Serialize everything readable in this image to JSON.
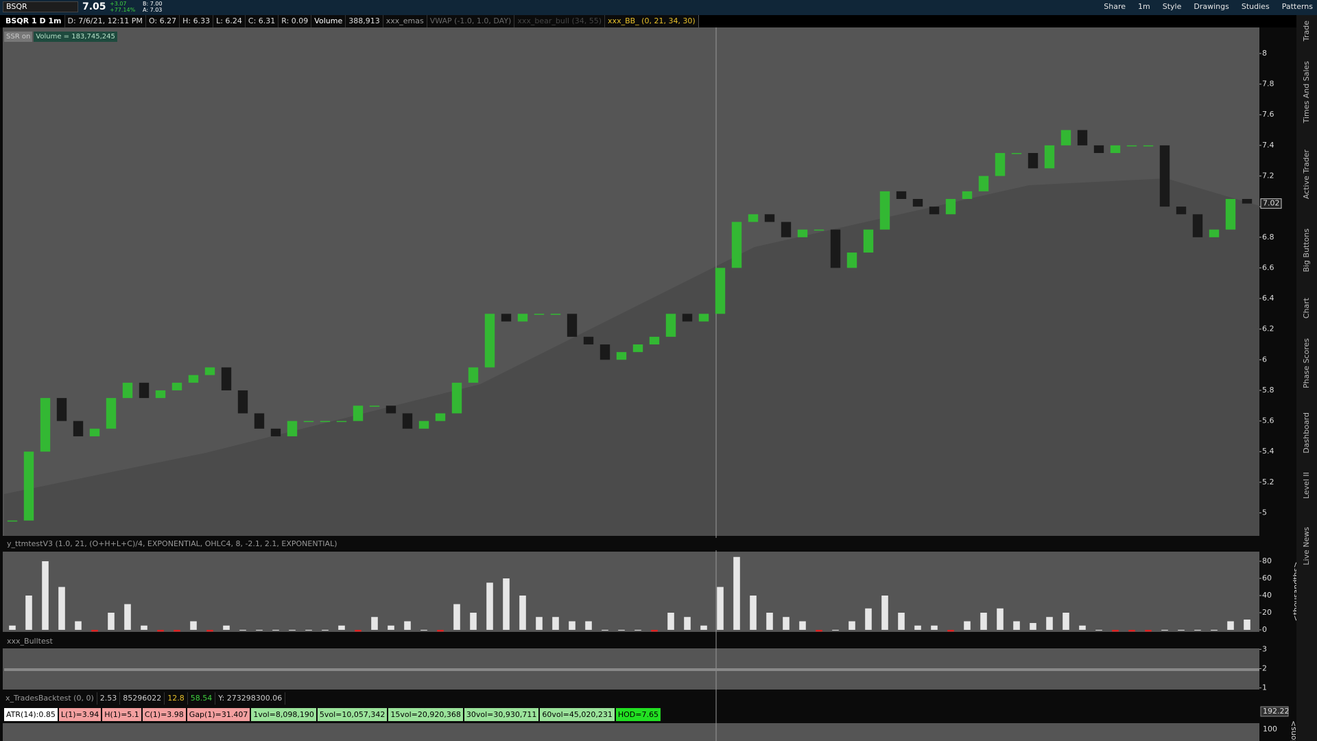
{
  "top_bar": {
    "symbol": "BSQR",
    "last": "7.05",
    "change": "+3.07",
    "change_pct": "+77.14%",
    "bid": "B: 7.00",
    "ask": "A: 7.03",
    "buttons": [
      "Share",
      "1m",
      "Style",
      "Drawings",
      "Studies",
      "Patterns"
    ]
  },
  "info_bar": [
    "BSQR 1 D 1m",
    "D: 7/6/21, 12:11 PM",
    "O: 6.27",
    "H: 6.33",
    "L: 6.24",
    "C: 6.31",
    "R: 0.09",
    "Volume",
    "388,913",
    "xxx_emas",
    "VWAP (-1.0, 1.0, DAY)",
    "xxx_bear_bull (34, 55)",
    "xxx_BB_ (0, 21, 34, 30)"
  ],
  "badges": [
    "SSR on",
    "Volume = 183,745,245"
  ],
  "price_chart": {
    "type": "candles",
    "closes": [
      4.95,
      5.4,
      5.75,
      5.6,
      5.5,
      5.55,
      5.75,
      5.85,
      5.75,
      5.8,
      5.85,
      5.9,
      5.95,
      5.8,
      5.65,
      5.55,
      5.5,
      5.6,
      5.6,
      5.6,
      5.6,
      5.7,
      5.7,
      5.65,
      5.55,
      5.6,
      5.65,
      5.85,
      5.95,
      6.3,
      6.25,
      6.3,
      6.3,
      6.3,
      6.15,
      6.1,
      6.0,
      6.05,
      6.1,
      6.15,
      6.3,
      6.25,
      6.3,
      6.6,
      6.9,
      6.95,
      6.9,
      6.8,
      6.85,
      6.85,
      6.6,
      6.7,
      6.85,
      7.1,
      7.05,
      7.0,
      6.95,
      7.05,
      7.1,
      7.2,
      7.35,
      7.35,
      7.25,
      7.4,
      7.5,
      7.4,
      7.35,
      7.4,
      7.4,
      7.4,
      7.0,
      6.95,
      6.8,
      6.85,
      7.05,
      7.02
    ],
    "up_color": "#33b833",
    "down_color": "#1a1a1a",
    "ylim": [
      4.85,
      8.17
    ],
    "yticks": [
      5,
      5.2,
      5.4,
      5.6,
      5.8,
      6,
      6.2,
      6.4,
      6.6,
      6.8,
      7,
      7.2,
      7.4,
      7.6,
      7.8,
      8
    ],
    "last_price": 7.02
  },
  "study_panel": {
    "type": "histogram",
    "label": "y_ttmtestV3 (1.0, 21, (O+H+L+C)/4, EXPONENTIAL, OHLC4, 8, -2.1, 2.1, EXPONENTIAL)",
    "values": [
      5,
      40,
      80,
      50,
      10,
      -2,
      20,
      30,
      5,
      -2,
      -2,
      10,
      -2,
      5,
      0,
      0,
      0,
      0,
      0,
      0,
      5,
      -2,
      15,
      5,
      10,
      0,
      -2,
      30,
      20,
      55,
      60,
      40,
      15,
      15,
      10,
      10,
      0,
      0,
      0,
      -2,
      20,
      15,
      5,
      50,
      85,
      40,
      20,
      15,
      10,
      -2,
      0,
      10,
      25,
      40,
      20,
      5,
      5,
      -2,
      10,
      20,
      25,
      10,
      8,
      15,
      20,
      5,
      0,
      -2,
      -2,
      -2,
      0,
      0,
      0,
      0,
      10,
      12
    ],
    "pos_color": "#e6e6e6",
    "neg_color": "#e02020",
    "ylim": [
      -2.4,
      91.2
    ],
    "yticks": [
      0,
      20,
      40,
      60,
      80
    ],
    "axis_label": "<thousandths>"
  },
  "bull_panel": {
    "label": "xxx_Bulltest",
    "ylim": [
      0.95,
      3.05
    ],
    "yticks": [
      1,
      2,
      3
    ]
  },
  "backtest": {
    "label": "x_TradesBacktest (0, 0)",
    "fields": [
      "2.53",
      "85296022",
      "12.8",
      "58.54",
      "Y: 273298300.06"
    ]
  },
  "stats": [
    {
      "text": "ATR(14):0.85",
      "color": "#ffffff"
    },
    {
      "text": "L(1)=3.94",
      "color": "#f4a0a0"
    },
    {
      "text": "H(1)=5.1",
      "color": "#f4a0a0"
    },
    {
      "text": "C(1)=3.98",
      "color": "#f4a0a0"
    },
    {
      "text": "Gap(1)=31.407",
      "color": "#f4a0a0"
    },
    {
      "text": "1vol=8,098,190",
      "color": "#9be39b"
    },
    {
      "text": "5vol=10,057,342",
      "color": "#9be39b"
    },
    {
      "text": "15vol=20,920,368",
      "color": "#9be39b"
    },
    {
      "text": "30vol=30,930,711",
      "color": "#9be39b"
    },
    {
      "text": "60vol=45,020,231",
      "color": "#9be39b"
    },
    {
      "text": "HOD=7.65",
      "color": "#22e022"
    }
  ],
  "bottom_axis": {
    "ticks": [
      "192.22",
      "100"
    ],
    "axis_label": "millions>"
  },
  "side_tabs": [
    "Trade",
    "Times And Sales",
    "Active Trader",
    "Big Buttons",
    "Chart",
    "Phase Scores",
    "Dashboard",
    "Level II",
    "Live News"
  ]
}
